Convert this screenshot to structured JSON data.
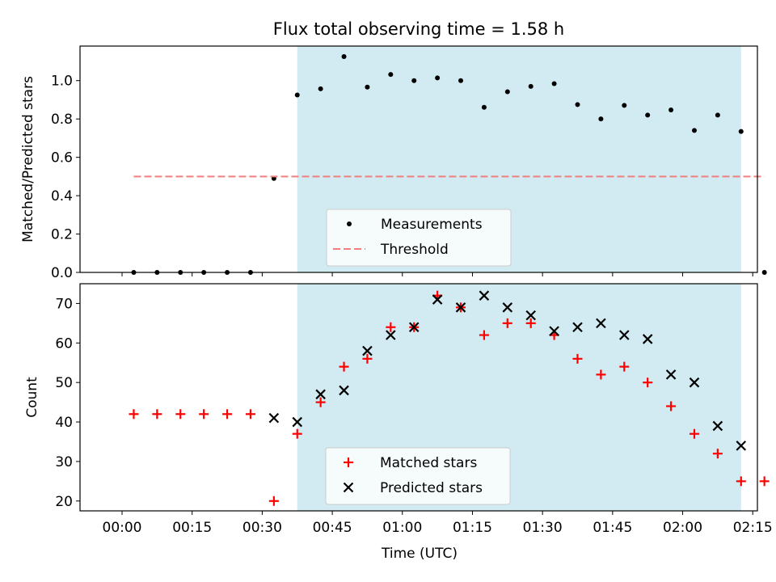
{
  "chart_data": [
    {
      "type": "scatter",
      "title": "Flux total observing time = 1.58 h",
      "xlabel": "",
      "ylabel": "Matched/Predicted stars",
      "ylim": [
        0,
        1.18
      ],
      "yticks": [
        "0.0",
        "0.2",
        "0.4",
        "0.6",
        "0.8",
        "1.0"
      ],
      "xlim_minutes": [
        -9,
        136
      ],
      "shaded_region_minutes": [
        37.5,
        132.5
      ],
      "shade_color": "#add8e6",
      "series": [
        {
          "name": "Measurements",
          "marker": "dot",
          "color": "#000000",
          "x": [
            "00:02:30",
            "00:07:30",
            "00:12:30",
            "00:17:30",
            "00:22:30",
            "00:27:30",
            "00:32:30",
            "00:37:30",
            "00:42:30",
            "00:47:30",
            "00:52:30",
            "00:57:30",
            "01:02:30",
            "01:07:30",
            "01:12:30",
            "01:17:30",
            "01:22:30",
            "01:27:30",
            "01:32:30",
            "01:37:30",
            "01:42:30",
            "01:47:30",
            "01:52:30",
            "01:57:30",
            "02:02:30",
            "02:07:30",
            "02:12:30",
            "02:17:30"
          ],
          "y": [
            0,
            0,
            0,
            0,
            0,
            0,
            0.49,
            0.925,
            0.957,
            1.125,
            0.966,
            1.032,
            1.0,
            1.014,
            1.0,
            0.861,
            0.942,
            0.97,
            0.984,
            0.875,
            0.8,
            0.871,
            0.82,
            0.847,
            0.74,
            0.82,
            0.735,
            0
          ]
        },
        {
          "name": "Threshold",
          "marker": "dashed-line",
          "color": "#f08080",
          "x": [
            "00:02:30",
            "02:17:30"
          ],
          "y": [
            0.5,
            0.5
          ]
        }
      ],
      "legend": "lower center"
    },
    {
      "type": "scatter",
      "title": "",
      "xlabel": "Time (UTC)",
      "ylabel": "Count",
      "ylim": [
        17.5,
        75
      ],
      "yticks": [
        "20",
        "30",
        "40",
        "50",
        "60",
        "70"
      ],
      "xticks": [
        "00:00",
        "00:15",
        "00:30",
        "00:45",
        "01:00",
        "01:15",
        "01:30",
        "01:45",
        "02:00",
        "02:15"
      ],
      "xlim_minutes": [
        -9,
        136
      ],
      "shaded_region_minutes": [
        37.5,
        132.5
      ],
      "shade_color": "#add8e6",
      "series": [
        {
          "name": "Matched stars",
          "marker": "plus",
          "color": "#ff0000",
          "x": [
            "00:02:30",
            "00:07:30",
            "00:12:30",
            "00:17:30",
            "00:22:30",
            "00:27:30",
            "00:32:30",
            "00:37:30",
            "00:42:30",
            "00:47:30",
            "00:52:30",
            "00:57:30",
            "01:02:30",
            "01:07:30",
            "01:12:30",
            "01:17:30",
            "01:22:30",
            "01:27:30",
            "01:32:30",
            "01:37:30",
            "01:42:30",
            "01:47:30",
            "01:52:30",
            "01:57:30",
            "02:02:30",
            "02:07:30",
            "02:12:30",
            "02:17:30"
          ],
          "y": [
            42,
            42,
            42,
            42,
            42,
            42,
            20,
            37,
            45,
            54,
            56,
            64,
            64,
            72,
            69,
            62,
            65,
            65,
            62,
            56,
            52,
            54,
            50,
            44,
            37,
            32,
            25,
            25
          ]
        },
        {
          "name": "Predicted stars",
          "marker": "x",
          "color": "#000000",
          "x": [
            "00:32:30",
            "00:37:30",
            "00:42:30",
            "00:47:30",
            "00:52:30",
            "00:57:30",
            "01:02:30",
            "01:07:30",
            "01:12:30",
            "01:17:30",
            "01:22:30",
            "01:27:30",
            "01:32:30",
            "01:37:30",
            "01:42:30",
            "01:47:30",
            "01:52:30",
            "01:57:30",
            "02:02:30",
            "02:07:30",
            "02:12:30"
          ],
          "y": [
            41,
            40,
            47,
            48,
            58,
            62,
            64,
            71,
            69,
            72,
            69,
            67,
            63,
            64,
            65,
            62,
            61,
            52,
            50,
            39,
            34
          ]
        }
      ],
      "legend": "lower center"
    }
  ]
}
